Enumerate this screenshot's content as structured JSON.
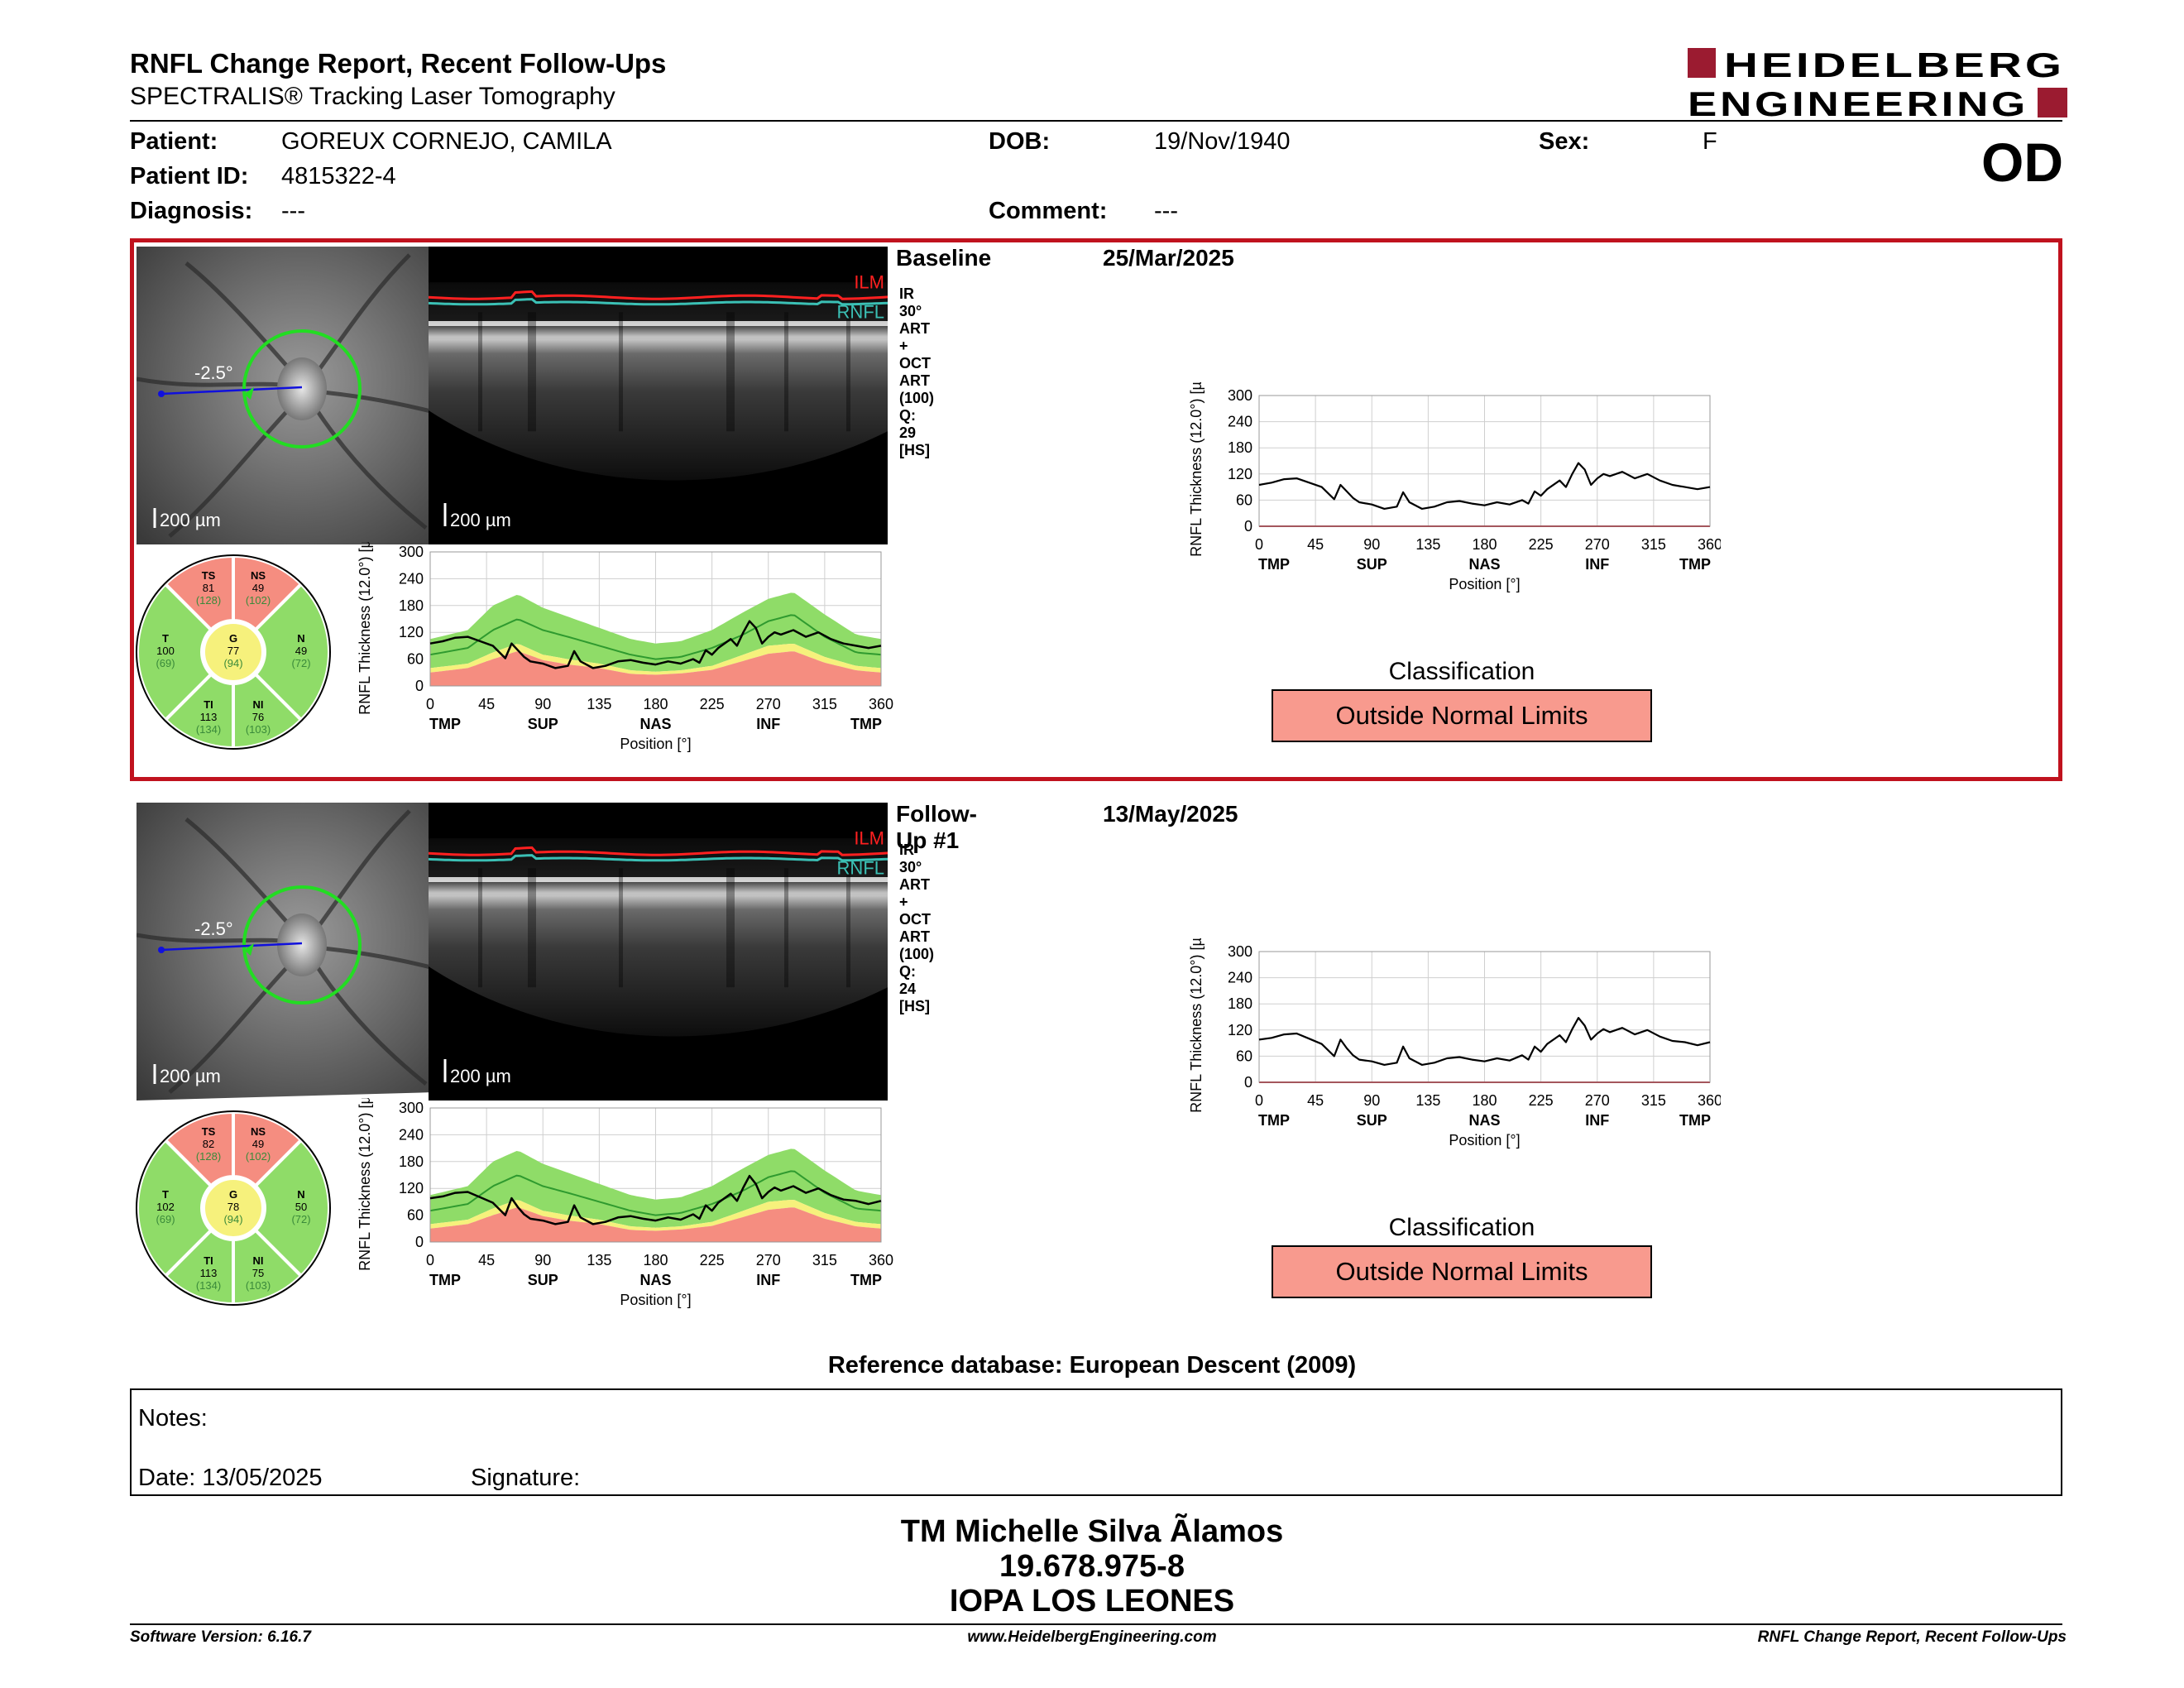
{
  "header": {
    "title": "RNFL Change Report, Recent Follow-Ups",
    "subtitle": "SPECTRALIS® Tracking Laser Tomography",
    "logo_line1": "HEIDELBERG",
    "logo_line2": "ENGINEERING",
    "eye": "OD"
  },
  "patient": {
    "patient_label": "Patient:",
    "patient_value": "GOREUX CORNEJO, CAMILA",
    "dob_label": "DOB:",
    "dob_value": "19/Nov/1940",
    "sex_label": "Sex:",
    "sex_value": "F",
    "id_label": "Patient ID:",
    "id_value": "4815322-4",
    "diagnosis_label": "Diagnosis:",
    "diagnosis_value": "---",
    "comment_label": "Comment:",
    "comment_value": "---"
  },
  "colors": {
    "frame_red": "#c0121e",
    "normal_green": "#8fdc68",
    "border_yellow": "#f6f17c",
    "outside_red": "#f58d80",
    "ilm": "#ff2020",
    "rnfl": "#3bc0b5"
  },
  "exams": [
    {
      "title": "Baseline",
      "date": "25/Mar/2025",
      "scan_info": "IR 30° ART + OCT ART (100) Q: 29 [HS]",
      "angle_label": "-2.5°",
      "scale_fundus": "200 µm",
      "scale_bscan": "200 µm",
      "ilm_label": "ILM",
      "rnfl_label": "RNFL",
      "sectors": {
        "TS": {
          "label": "TS",
          "value": "81",
          "ref": "(128)"
        },
        "NS": {
          "label": "NS",
          "value": "49",
          "ref": "(102)"
        },
        "T": {
          "label": "T",
          "value": "100",
          "ref": "(69)"
        },
        "G": {
          "label": "G",
          "value": "77",
          "ref": "(94)"
        },
        "N": {
          "label": "N",
          "value": "49",
          "ref": "(72)"
        },
        "TI": {
          "label": "TI",
          "value": "113",
          "ref": "(134)"
        },
        "NI": {
          "label": "NI",
          "value": "76",
          "ref": "(103)"
        }
      },
      "classification_title": "Classification",
      "classification": "Outside Normal Limits"
    },
    {
      "title": "Follow-Up #1",
      "date": "13/May/2025",
      "scan_info": "IR 30° ART + OCT ART (100) Q: 24 [HS]",
      "angle_label": "-2.5°",
      "scale_fundus": "200 µm",
      "scale_bscan": "200 µm",
      "ilm_label": "ILM",
      "rnfl_label": "RNFL",
      "sectors": {
        "TS": {
          "label": "TS",
          "value": "82",
          "ref": "(128)"
        },
        "NS": {
          "label": "NS",
          "value": "49",
          "ref": "(102)"
        },
        "T": {
          "label": "T",
          "value": "102",
          "ref": "(69)"
        },
        "G": {
          "label": "G",
          "value": "78",
          "ref": "(94)"
        },
        "N": {
          "label": "N",
          "value": "50",
          "ref": "(72)"
        },
        "TI": {
          "label": "TI",
          "value": "113",
          "ref": "(134)"
        },
        "NI": {
          "label": "NI",
          "value": "75",
          "ref": "(103)"
        }
      },
      "classification_title": "Classification",
      "classification": "Outside Normal Limits"
    }
  ],
  "chart_data": [
    {
      "type": "line",
      "title": "",
      "xlabel": "Position [°]",
      "ylabel": "RNFL Thickness (12.0°) [µm]",
      "xlim": [
        0,
        360
      ],
      "ylim": [
        0,
        300
      ],
      "xticks": [
        0,
        45,
        90,
        135,
        180,
        225,
        270,
        315,
        360
      ],
      "yticks": [
        0,
        60,
        120,
        180,
        240,
        300
      ],
      "region_labels": [
        "TMP",
        "SUP",
        "NAS",
        "INF",
        "TMP"
      ],
      "normal_band": {
        "x": [
          0,
          30,
          50,
          70,
          90,
          110,
          135,
          160,
          180,
          200,
          225,
          250,
          270,
          290,
          315,
          340,
          360
        ],
        "lower5": [
          40,
          50,
          75,
          95,
          70,
          60,
          50,
          35,
          32,
          35,
          45,
          70,
          90,
          95,
          65,
          45,
          40
        ],
        "lower1": [
          30,
          40,
          60,
          78,
          58,
          48,
          40,
          27,
          25,
          28,
          36,
          56,
          72,
          78,
          52,
          35,
          30
        ],
        "mean": [
          70,
          85,
          125,
          150,
          125,
          110,
          90,
          70,
          60,
          65,
          85,
          115,
          145,
          160,
          110,
          75,
          70
        ],
        "upper95": [
          105,
          125,
          180,
          205,
          175,
          155,
          130,
          105,
          95,
          100,
          125,
          165,
          195,
          210,
          160,
          115,
          105
        ]
      },
      "series": [
        {
          "name": "Baseline 25/Mar/2025",
          "x": [
            0,
            10,
            20,
            30,
            40,
            50,
            60,
            65,
            70,
            75,
            80,
            90,
            100,
            110,
            115,
            120,
            130,
            140,
            150,
            160,
            170,
            180,
            190,
            200,
            210,
            215,
            220,
            225,
            230,
            240,
            245,
            250,
            255,
            260,
            265,
            270,
            275,
            280,
            290,
            300,
            310,
            320,
            330,
            340,
            350,
            360
          ],
          "values": [
            95,
            100,
            108,
            110,
            100,
            90,
            62,
            95,
            80,
            65,
            55,
            50,
            40,
            45,
            78,
            55,
            40,
            45,
            55,
            58,
            52,
            48,
            55,
            50,
            60,
            52,
            80,
            70,
            85,
            105,
            90,
            120,
            145,
            130,
            95,
            110,
            120,
            115,
            125,
            110,
            120,
            105,
            95,
            90,
            85,
            90
          ]
        }
      ]
    },
    {
      "type": "line",
      "title": "",
      "xlabel": "Position [°]",
      "ylabel": "RNFL Thickness (12.0°) [µm]",
      "xlim": [
        0,
        360
      ],
      "ylim": [
        0,
        300
      ],
      "xticks": [
        0,
        45,
        90,
        135,
        180,
        225,
        270,
        315,
        360
      ],
      "yticks": [
        0,
        60,
        120,
        180,
        240,
        300
      ],
      "region_labels": [
        "TMP",
        "SUP",
        "NAS",
        "INF",
        "TMP"
      ],
      "normal_band": {
        "x": [
          0,
          30,
          50,
          70,
          90,
          110,
          135,
          160,
          180,
          200,
          225,
          250,
          270,
          290,
          315,
          340,
          360
        ],
        "lower5": [
          40,
          50,
          75,
          95,
          70,
          60,
          50,
          35,
          32,
          35,
          45,
          70,
          90,
          95,
          65,
          45,
          40
        ],
        "lower1": [
          30,
          40,
          60,
          78,
          58,
          48,
          40,
          27,
          25,
          28,
          36,
          56,
          72,
          78,
          52,
          35,
          30
        ],
        "mean": [
          70,
          85,
          125,
          150,
          125,
          110,
          90,
          70,
          60,
          65,
          85,
          115,
          145,
          160,
          110,
          75,
          70
        ],
        "upper95": [
          105,
          125,
          180,
          205,
          175,
          155,
          130,
          105,
          95,
          100,
          125,
          165,
          195,
          210,
          160,
          115,
          105
        ]
      },
      "series": [
        {
          "name": "Follow-Up #1 13/May/2025",
          "x": [
            0,
            10,
            20,
            30,
            40,
            50,
            60,
            65,
            70,
            75,
            80,
            90,
            100,
            110,
            115,
            120,
            130,
            140,
            150,
            160,
            170,
            180,
            190,
            200,
            210,
            215,
            220,
            225,
            230,
            240,
            245,
            250,
            255,
            260,
            265,
            270,
            275,
            280,
            290,
            300,
            310,
            320,
            330,
            340,
            350,
            360
          ],
          "values": [
            98,
            102,
            110,
            112,
            100,
            88,
            60,
            98,
            78,
            62,
            52,
            48,
            40,
            45,
            82,
            55,
            40,
            45,
            55,
            58,
            52,
            48,
            55,
            50,
            62,
            52,
            82,
            70,
            88,
            108,
            92,
            122,
            148,
            130,
            98,
            112,
            122,
            115,
            125,
            110,
            120,
            105,
            95,
            92,
            85,
            92
          ]
        }
      ]
    }
  ],
  "reference_db": "Reference database: European Descent (2009)",
  "notes": {
    "notes_label": "Notes:",
    "date_label": "Date: 13/05/2025",
    "signature_label": "Signature:"
  },
  "signature_block": {
    "line1": "TM Michelle Silva Ãlamos",
    "line2": "19.678.975-8",
    "line3": "IOPA LOS LEONES"
  },
  "footer": {
    "left": "Software Version: 6.16.7",
    "center": "www.HeidelbergEngineering.com",
    "right": "RNFL Change Report, Recent Follow-Ups"
  }
}
